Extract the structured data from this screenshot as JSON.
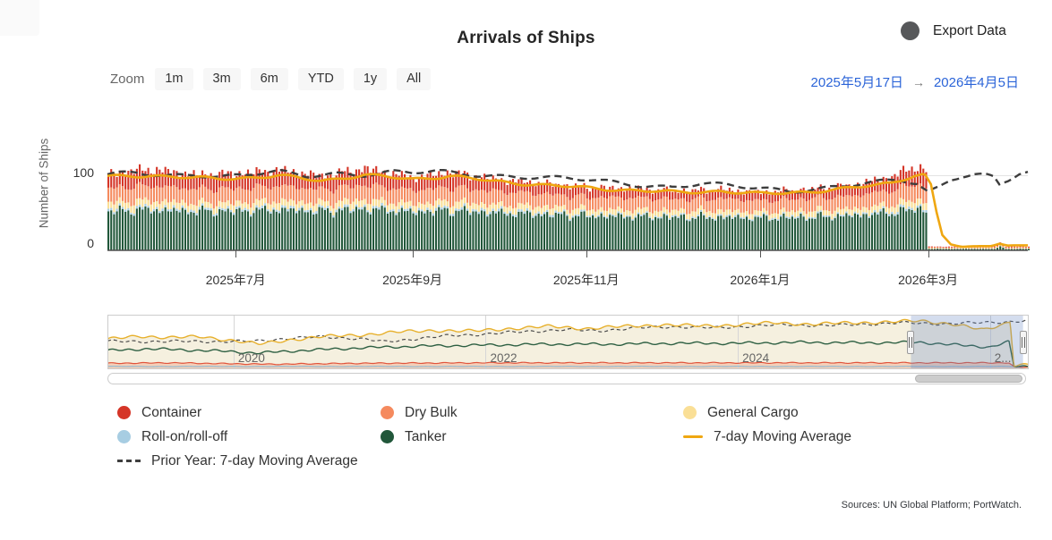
{
  "header": {
    "title": "Arrivals of Ships",
    "export_label": "Export Data"
  },
  "ui_colors": {
    "date_text": "#2b64d8",
    "export_circle": "#57585a"
  },
  "zoom": {
    "label": "Zoom",
    "buttons": [
      {
        "label": "1m"
      },
      {
        "label": "3m"
      },
      {
        "label": "6m"
      },
      {
        "label": "YTD"
      },
      {
        "label": "1y"
      },
      {
        "label": "All"
      }
    ]
  },
  "date_range": {
    "from": "2025年5月17日",
    "arrow": "→",
    "to": "2026年4月5日"
  },
  "y_axis": {
    "title": "Number of Ships",
    "tick_hundred": "100",
    "tick_zero": "0"
  },
  "x_axis": {
    "labels": [
      {
        "text": "2025年7月",
        "day": 45
      },
      {
        "text": "2025年9月",
        "day": 107
      },
      {
        "text": "2025年11月",
        "day": 168
      },
      {
        "text": "2026年1月",
        "day": 229
      },
      {
        "text": "2026年3月",
        "day": 288
      }
    ]
  },
  "legend": {
    "items": [
      {
        "label": "Container",
        "color": "#d53527",
        "marker": "circle"
      },
      {
        "label": "Dry Bulk",
        "color": "#f58a5e",
        "marker": "circle"
      },
      {
        "label": "General Cargo",
        "color": "#fadf96",
        "marker": "circle"
      },
      {
        "label": "Roll-on/roll-off",
        "color": "#a7cde2",
        "marker": "circle"
      },
      {
        "label": "Tanker",
        "color": "#21573a",
        "marker": "circle"
      },
      {
        "label": "7-day Moving Average",
        "color": "#efa711",
        "marker": "line"
      },
      {
        "label": "Prior Year: 7-day Moving Average",
        "color": "#3f3f3f",
        "marker": "dash"
      }
    ]
  },
  "sources": {
    "text": "Sources: UN Global Platform; PortWatch."
  },
  "chart_data": {
    "type": "bar",
    "subtype": "stacked-daily-bars-with-moving-average-lines",
    "title": "Arrivals of Ships",
    "ylabel": "Number of Ships",
    "ylim": [
      0,
      160
    ],
    "yticks": [
      0,
      100
    ],
    "grid": "horizontal-only",
    "x_range": {
      "start": "2025-05-17",
      "end": "2026-04-05",
      "days": 323
    },
    "stack_order_bottom_to_top": [
      "Tanker",
      "Roll-on/roll-off",
      "General Cargo",
      "Dry Bulk",
      "Container"
    ],
    "colors": {
      "tanker": "#21573a",
      "roro": "#a7cde2",
      "general_cargo": "#fadf96",
      "dry_bulk": "#f58a5e",
      "container": "#d53527",
      "ma7": "#efa711",
      "prior_year": "#3d3d3d",
      "gridline": "#e3e3e3",
      "axis_line": "#4e4e4e"
    },
    "bar_anchors_day_tanker_roro_general_dry_container": [
      [
        0,
        52,
        3,
        9,
        19,
        20
      ],
      [
        15,
        54,
        3,
        9,
        20,
        22
      ],
      [
        30,
        52,
        3,
        8,
        19,
        19
      ],
      [
        45,
        52,
        3,
        8,
        19,
        20
      ],
      [
        60,
        54,
        3,
        9,
        20,
        21
      ],
      [
        75,
        52,
        3,
        8,
        18,
        18
      ],
      [
        90,
        55,
        3,
        9,
        20,
        22
      ],
      [
        107,
        51,
        3,
        8,
        18,
        17
      ],
      [
        120,
        53,
        3,
        9,
        19,
        20
      ],
      [
        135,
        50,
        3,
        8,
        18,
        16
      ],
      [
        150,
        48,
        3,
        8,
        17,
        14
      ],
      [
        168,
        46,
        2,
        7,
        16,
        13
      ],
      [
        185,
        45,
        2,
        7,
        16,
        12
      ],
      [
        200,
        44,
        2,
        7,
        15,
        11
      ],
      [
        215,
        44,
        2,
        7,
        16,
        12
      ],
      [
        229,
        43,
        2,
        6,
        15,
        11
      ],
      [
        245,
        44,
        2,
        7,
        16,
        12
      ],
      [
        260,
        46,
        2,
        7,
        17,
        14
      ],
      [
        275,
        50,
        3,
        8,
        19,
        18
      ],
      [
        283,
        55,
        3,
        9,
        21,
        24
      ],
      [
        287,
        53,
        3,
        9,
        20,
        21
      ],
      [
        288,
        2,
        0,
        1,
        1,
        1
      ],
      [
        311,
        2,
        0,
        1,
        1,
        1
      ],
      [
        313,
        5,
        0,
        1,
        2,
        3
      ],
      [
        315,
        2,
        0,
        1,
        1,
        1
      ],
      [
        323,
        2,
        0,
        1,
        1,
        1
      ]
    ],
    "ma7_anchors": [
      [
        0,
        98
      ],
      [
        15,
        100
      ],
      [
        30,
        96
      ],
      [
        45,
        96
      ],
      [
        60,
        99
      ],
      [
        75,
        93
      ],
      [
        90,
        100
      ],
      [
        107,
        95
      ],
      [
        120,
        99
      ],
      [
        135,
        92
      ],
      [
        150,
        88
      ],
      [
        168,
        83
      ],
      [
        185,
        80
      ],
      [
        200,
        77
      ],
      [
        215,
        79
      ],
      [
        229,
        75
      ],
      [
        245,
        78
      ],
      [
        260,
        82
      ],
      [
        275,
        90
      ],
      [
        283,
        100
      ],
      [
        287,
        101
      ],
      [
        289,
        88
      ],
      [
        291,
        50
      ],
      [
        293,
        20
      ],
      [
        296,
        8
      ],
      [
        300,
        5
      ],
      [
        305,
        5
      ],
      [
        310,
        6
      ],
      [
        313,
        9
      ],
      [
        316,
        6
      ],
      [
        323,
        7
      ]
    ],
    "prior_year_ma7_anchors": [
      [
        0,
        100
      ],
      [
        10,
        103
      ],
      [
        20,
        99
      ],
      [
        30,
        102
      ],
      [
        40,
        98
      ],
      [
        50,
        101
      ],
      [
        60,
        104
      ],
      [
        70,
        99
      ],
      [
        80,
        103
      ],
      [
        90,
        101
      ],
      [
        100,
        104
      ],
      [
        107,
        103
      ],
      [
        115,
        105
      ],
      [
        125,
        102
      ],
      [
        135,
        100
      ],
      [
        145,
        98
      ],
      [
        155,
        96
      ],
      [
        168,
        94
      ],
      [
        178,
        91
      ],
      [
        188,
        87
      ],
      [
        198,
        84
      ],
      [
        208,
        88
      ],
      [
        218,
        86
      ],
      [
        229,
        83
      ],
      [
        240,
        80
      ],
      [
        250,
        82
      ],
      [
        260,
        86
      ],
      [
        270,
        90
      ],
      [
        278,
        94
      ],
      [
        284,
        90
      ],
      [
        288,
        78
      ],
      [
        292,
        85
      ],
      [
        296,
        95
      ],
      [
        300,
        100
      ],
      [
        304,
        102
      ],
      [
        308,
        100
      ],
      [
        311,
        96
      ],
      [
        313,
        86
      ],
      [
        316,
        92
      ],
      [
        320,
        102
      ],
      [
        323,
        104
      ]
    ],
    "navigator": {
      "x_range_years": [
        2019.0,
        2026.3
      ],
      "selection_years": [
        2025.373,
        2026.262
      ],
      "gridline_years": [
        2020,
        2022,
        2024,
        2026
      ],
      "year_labels": [
        {
          "text": "2020",
          "year": 2020
        },
        {
          "text": "2022",
          "year": 2022
        },
        {
          "text": "2024",
          "year": 2024
        },
        {
          "text": "2...",
          "year": 2026
        }
      ],
      "mask_fill": "rgba(102,133,194,0.28)",
      "series": [
        {
          "name": "total_ma",
          "color": "#e7b02c",
          "width": 1.4,
          "dash": null,
          "fill": "#f5f0df",
          "anchors": [
            [
              2019,
              60
            ],
            [
              2019.25,
              68
            ],
            [
              2019.5,
              64
            ],
            [
              2019.75,
              66
            ],
            [
              2020,
              58
            ],
            [
              2020.2,
              50
            ],
            [
              2020.45,
              60
            ],
            [
              2020.7,
              66
            ],
            [
              2021,
              70
            ],
            [
              2021.3,
              76
            ],
            [
              2021.6,
              80
            ],
            [
              2021.9,
              78
            ],
            [
              2022.2,
              84
            ],
            [
              2022.5,
              88
            ],
            [
              2022.8,
              84
            ],
            [
              2023.1,
              88
            ],
            [
              2023.4,
              92
            ],
            [
              2023.7,
              89
            ],
            [
              2024,
              92
            ],
            [
              2024.3,
              96
            ],
            [
              2024.6,
              93
            ],
            [
              2024.9,
              96
            ],
            [
              2025.2,
              98
            ],
            [
              2025.45,
              100
            ],
            [
              2025.7,
              94
            ],
            [
              2025.95,
              80
            ],
            [
              2026.1,
              92
            ],
            [
              2026.16,
              100
            ],
            [
              2026.19,
              6
            ],
            [
              2026.3,
              7
            ]
          ]
        },
        {
          "name": "prior_year_ma",
          "color": "#4a4a4a",
          "width": 1.2,
          "dash": [
            4,
            3
          ],
          "fill": null,
          "anchors": [
            [
              2020.15,
              56
            ],
            [
              2020.4,
              62
            ],
            [
              2020.7,
              66
            ],
            [
              2021,
              62
            ],
            [
              2021.2,
              55
            ],
            [
              2021.45,
              62
            ],
            [
              2021.7,
              68
            ],
            [
              2022,
              72
            ],
            [
              2022.3,
              77
            ],
            [
              2022.6,
              81
            ],
            [
              2022.9,
              79
            ],
            [
              2023.2,
              85
            ],
            [
              2023.5,
              88
            ],
            [
              2023.8,
              85
            ],
            [
              2024.1,
              89
            ],
            [
              2024.4,
              92
            ],
            [
              2024.7,
              90
            ],
            [
              2025,
              93
            ],
            [
              2025.3,
              96
            ],
            [
              2025.6,
              94
            ],
            [
              2025.9,
              96
            ],
            [
              2026.2,
              99
            ],
            [
              2026.3,
              101
            ]
          ]
        },
        {
          "name": "tanker_ma",
          "color": "#2d5f42",
          "width": 1.4,
          "dash": null,
          "fill": null,
          "anchors": [
            [
              2019,
              36
            ],
            [
              2019.3,
              40
            ],
            [
              2019.6,
              38
            ],
            [
              2020,
              34
            ],
            [
              2020.2,
              31
            ],
            [
              2020.5,
              36
            ],
            [
              2021,
              42
            ],
            [
              2021.5,
              46
            ],
            [
              2022,
              48
            ],
            [
              2022.5,
              50
            ],
            [
              2023,
              50
            ],
            [
              2023.5,
              52
            ],
            [
              2024,
              52
            ],
            [
              2024.5,
              54
            ],
            [
              2025,
              53
            ],
            [
              2025.45,
              54
            ],
            [
              2025.8,
              47
            ],
            [
              2026,
              44
            ],
            [
              2026.15,
              55
            ],
            [
              2026.19,
              2
            ],
            [
              2026.3,
              2
            ]
          ]
        },
        {
          "name": "container_ma",
          "color": "#e0543c",
          "width": 1.2,
          "dash": null,
          "fill": "rgba(243,146,111,0.35)",
          "anchors": [
            [
              2019,
              9
            ],
            [
              2019.5,
              10
            ],
            [
              2020,
              8
            ],
            [
              2020.3,
              7
            ],
            [
              2021,
              9
            ],
            [
              2022,
              10
            ],
            [
              2023,
              10
            ],
            [
              2024,
              10
            ],
            [
              2025,
              10
            ],
            [
              2026.15,
              10
            ],
            [
              2026.19,
              1
            ],
            [
              2026.3,
              1
            ]
          ]
        },
        {
          "name": "roro_ma",
          "color": "#8fbcd4",
          "width": 1.2,
          "dash": null,
          "fill": null,
          "anchors": [
            [
              2019,
              2
            ],
            [
              2026.3,
              2
            ]
          ]
        }
      ]
    }
  }
}
